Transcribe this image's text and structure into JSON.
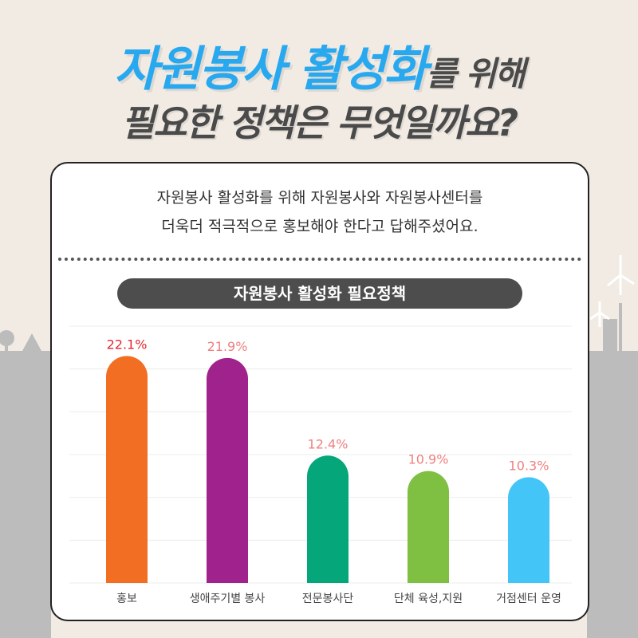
{
  "headline": {
    "line1_blue": "자원봉사 활성화",
    "line1_gray": "를 위해",
    "line2": "필요한 정책은 무엇일까요?"
  },
  "description": {
    "line1": "자원봉사 활성화를 위해  자원봉사와 자원봉사센터를",
    "line2": "더욱더 적극적으로 홍보해야 한다고 답해주셨어요."
  },
  "colors": {
    "headline_blue": "#27a8ef",
    "headline_gray": "#4a4a4a",
    "top_label": "#e0262f",
    "other_labels": "#f08080"
  },
  "chart_data": {
    "type": "bar",
    "title": "자원봉사 활성화 필요정책",
    "categories": [
      "홍보",
      "생애주기별 봉사",
      "전문봉사단",
      "단체 육성,지원",
      "거점센터 운영"
    ],
    "values": [
      22.1,
      21.9,
      12.4,
      10.9,
      10.3
    ],
    "value_labels": [
      "22.1%",
      "21.9%",
      "12.4%",
      "10.9%",
      "10.3%"
    ],
    "bar_colors": [
      "#f26e22",
      "#a0228c",
      "#05a77a",
      "#7fbf42",
      "#43c5f7"
    ],
    "ylim": [
      0,
      25
    ],
    "grid": true,
    "xlabel": "",
    "ylabel": ""
  }
}
